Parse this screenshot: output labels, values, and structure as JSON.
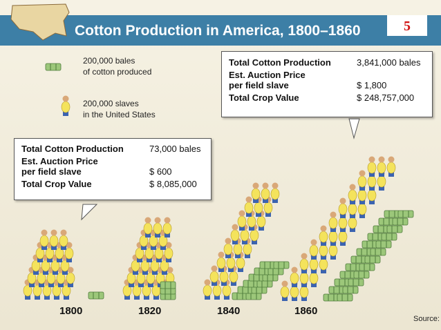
{
  "header": {
    "title": "Cotton Production in America, 1800–1860",
    "page_number": "5"
  },
  "legend": [
    {
      "lines": [
        "200,000 bales",
        "of cotton produced"
      ]
    },
    {
      "lines": [
        "200,000 slaves",
        "in the United States"
      ]
    }
  ],
  "boxes": [
    {
      "rows": [
        {
          "label": [
            "Total Cotton Production"
          ],
          "value": "73,000 bales"
        },
        {
          "label": [
            "Est. Auction Price",
            "per field slave"
          ],
          "value": "$ 600"
        },
        {
          "label": [
            "Total Crop Value"
          ],
          "value": "$ 8,085,000"
        }
      ]
    },
    {
      "rows": [
        {
          "label": [
            "Total Cotton Production"
          ],
          "value": "3,841,000 bales"
        },
        {
          "label": [
            "Est. Auction Price",
            "per field slave"
          ],
          "value": "$ 1,800"
        },
        {
          "label": [
            "Total Crop Value"
          ],
          "value": "$ 248,757,000"
        }
      ]
    }
  ],
  "years": [
    "1800",
    "1820",
    "1840",
    "1860"
  ],
  "source": "Source: /"
}
